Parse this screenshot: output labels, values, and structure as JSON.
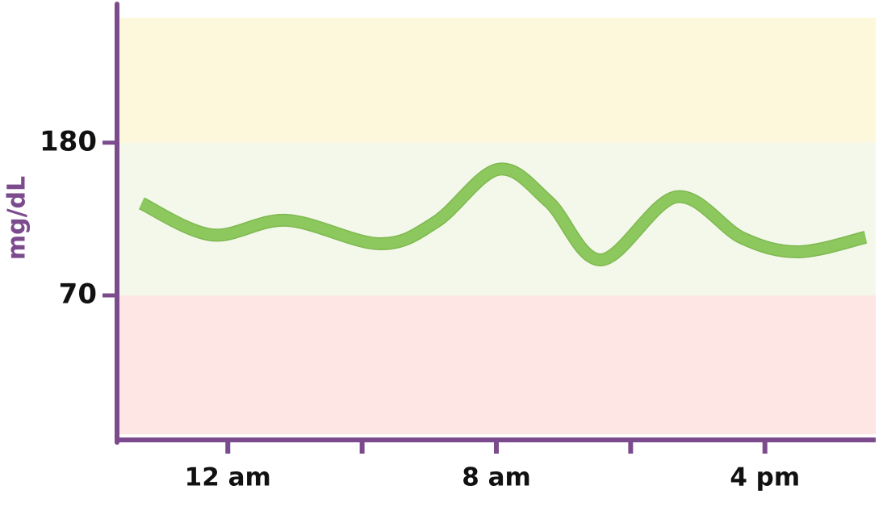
{
  "chart_data": {
    "type": "line",
    "y_label": "mg/dL",
    "xlim": [
      -3.3,
      19.3
    ],
    "ylim": [
      -30,
      270
    ],
    "yticks": [
      70,
      180
    ],
    "xticks": [
      {
        "value": 0,
        "label": "12 am"
      },
      {
        "value": 4
      },
      {
        "value": 8,
        "label": "8 am"
      },
      {
        "value": 12
      },
      {
        "value": 16,
        "label": "4 pm"
      }
    ],
    "bands": [
      {
        "from": 180,
        "to": 270,
        "color": "#fdf7dc"
      },
      {
        "from": 70,
        "to": 180,
        "color": "#f3f8eb"
      },
      {
        "from": -30,
        "to": 70,
        "color": "#fde6e4"
      }
    ],
    "series": [
      {
        "color": "#8dc85e",
        "x": [
          -2.57,
          -0.48,
          1.75,
          4.52,
          6.2,
          8.05,
          9.56,
          11.12,
          13.36,
          15.33,
          17.0,
          19.0
        ],
        "values": [
          136.3,
          113.6,
          124.1,
          107.2,
          123,
          160.8,
          137.5,
          95.6,
          141,
          111.3,
          101.4,
          111.9
        ]
      }
    ]
  }
}
